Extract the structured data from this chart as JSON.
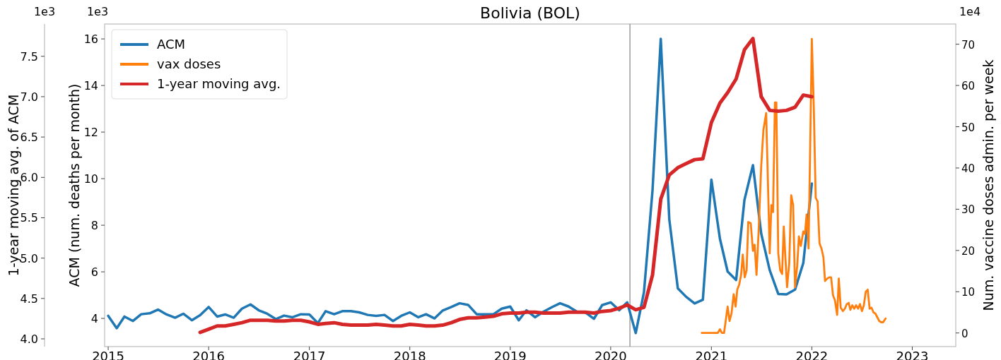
{
  "chart_data": {
    "type": "line",
    "title": "Bolivia (BOL)",
    "ylabel": "ACM (num. deaths per month)",
    "y2label": "Num. vaccine doses admin. per week",
    "y3label": "1-year moving avg. of ACM",
    "annotations": [
      "1e3",
      "1e3",
      "1e4"
    ],
    "xlim": [
      "2014-12-19",
      "2023-06-08"
    ],
    "xticks": [
      "2015",
      "2016",
      "2017",
      "2018",
      "2019",
      "2020",
      "2021",
      "2022",
      "2023"
    ],
    "ylim": [
      2.79,
      16.64
    ],
    "yticks": [
      4,
      6,
      8,
      10,
      12,
      14,
      16
    ],
    "y2lim": [
      -3.3,
      74.9
    ],
    "y2ticks": [
      0,
      10,
      20,
      30,
      40,
      50,
      60,
      70
    ],
    "y3lim": [
      3.904,
      7.9
    ],
    "y3ticks": [
      {
        "value": 4,
        "label": "4.0"
      },
      4.5,
      {
        "value": 5,
        "label": "5.0"
      },
      5.5,
      {
        "value": 6,
        "label": "6.0"
      },
      6.5,
      {
        "value": 7,
        "label": "7.0"
      },
      7.5
    ],
    "grid": false,
    "legend": "top left",
    "line_style": "solid",
    "marker": "none",
    "ref_lines": [
      {
        "axis": "x",
        "value": "2020-03-11",
        "color": "#8c8c8c"
      }
    ],
    "series": [
      {
        "name": "ACM",
        "color": "#1f77b4",
        "axis": "y",
        "x": [
          "2015-01",
          "2015-02",
          "2015-03",
          "2015-04",
          "2015-05",
          "2015-06",
          "2015-07",
          "2015-08",
          "2015-09",
          "2015-10",
          "2015-11",
          "2015-12",
          "2016-01",
          "2016-02",
          "2016-03",
          "2016-04",
          "2016-05",
          "2016-06",
          "2016-07",
          "2016-08",
          "2016-09",
          "2016-10",
          "2016-11",
          "2016-12",
          "2017-01",
          "2017-02",
          "2017-03",
          "2017-04",
          "2017-05",
          "2017-06",
          "2017-07",
          "2017-08",
          "2017-09",
          "2017-10",
          "2017-11",
          "2017-12",
          "2018-01",
          "2018-02",
          "2018-03",
          "2018-04",
          "2018-05",
          "2018-06",
          "2018-07",
          "2018-08",
          "2018-09",
          "2018-10",
          "2018-11",
          "2018-12",
          "2019-01",
          "2019-02",
          "2019-03",
          "2019-04",
          "2019-05",
          "2019-06",
          "2019-07",
          "2019-08",
          "2019-09",
          "2019-10",
          "2019-11",
          "2019-12",
          "2020-01",
          "2020-02",
          "2020-03",
          "2020-04",
          "2020-05",
          "2020-06",
          "2020-07",
          "2020-08",
          "2020-09",
          "2020-10",
          "2020-11",
          "2020-12",
          "2021-01",
          "2021-02",
          "2021-03",
          "2021-04",
          "2021-05",
          "2021-06",
          "2021-07",
          "2021-08",
          "2021-09",
          "2021-10",
          "2021-11",
          "2021-12",
          "2022-01"
        ],
        "values": [
          4.11,
          3.58,
          4.08,
          3.89,
          4.18,
          4.22,
          4.38,
          4.17,
          4.03,
          4.2,
          3.92,
          4.14,
          4.49,
          4.08,
          4.17,
          4.03,
          4.42,
          4.6,
          4.35,
          4.2,
          3.97,
          4.12,
          4.05,
          4.18,
          4.17,
          3.8,
          4.31,
          4.18,
          4.31,
          4.31,
          4.26,
          4.15,
          4.11,
          4.15,
          3.89,
          4.11,
          4.26,
          4.05,
          4.18,
          4.0,
          4.34,
          4.49,
          4.65,
          4.58,
          4.18,
          4.18,
          4.18,
          4.42,
          4.51,
          3.92,
          4.35,
          4.05,
          4.28,
          4.48,
          4.65,
          4.51,
          4.28,
          4.26,
          3.98,
          4.57,
          4.69,
          4.35,
          4.69,
          3.37,
          5.13,
          9.49,
          16.0,
          8.25,
          5.29,
          4.93,
          4.64,
          4.8,
          9.96,
          7.42,
          6.01,
          5.65,
          9.08,
          10.58,
          7.64,
          6.07,
          5.05,
          5.03,
          5.24,
          6.38,
          9.79
        ]
      },
      {
        "name": "vax doses",
        "color": "#ff7f0e",
        "axis": "y2",
        "x": [
          "2020-11-27",
          "2021-01-24",
          "2021-02-01",
          "2021-02-08",
          "2021-02-16",
          "2021-03-01",
          "2021-03-08",
          "2021-03-15",
          "2021-03-23",
          "2021-03-30",
          "2021-04-05",
          "2021-04-12",
          "2021-04-19",
          "2021-04-25",
          "2021-05-02",
          "2021-05-09",
          "2021-05-15",
          "2021-05-24",
          "2021-06-01",
          "2021-06-07",
          "2021-06-14",
          "2021-06-22",
          "2021-07-01",
          "2021-07-09",
          "2021-07-19",
          "2021-08-01",
          "2021-08-07",
          "2021-08-13",
          "2021-08-20",
          "2021-08-25",
          "2021-09-01",
          "2021-09-08",
          "2021-09-15",
          "2021-09-21",
          "2021-09-27",
          "2021-10-03",
          "2021-10-11",
          "2021-10-18",
          "2021-10-25",
          "2021-11-01",
          "2021-11-09",
          "2021-11-15",
          "2021-11-22",
          "2021-12-01",
          "2021-12-07",
          "2021-12-13",
          "2021-12-20",
          "2021-12-27",
          "2022-01-01",
          "2022-01-08",
          "2022-01-15",
          "2022-01-22",
          "2022-01-29",
          "2022-02-05",
          "2022-02-12",
          "2022-02-18",
          "2022-02-26",
          "2022-03-05",
          "2022-03-12",
          "2022-03-19",
          "2022-03-26",
          "2022-04-03",
          "2022-04-09",
          "2022-04-16",
          "2022-04-24",
          "2022-05-01",
          "2022-05-08",
          "2022-05-15",
          "2022-05-21",
          "2022-05-28",
          "2022-06-04",
          "2022-06-11",
          "2022-06-18",
          "2022-06-25",
          "2022-07-02",
          "2022-07-09",
          "2022-07-16",
          "2022-07-23",
          "2022-07-30",
          "2022-08-06",
          "2022-08-13",
          "2022-08-20",
          "2022-08-27",
          "2022-09-03",
          "2022-09-10",
          "2022-09-17",
          "2022-09-26"
        ],
        "values": [
          0,
          0,
          0.9,
          0,
          0,
          6.4,
          2.9,
          4.7,
          9.4,
          6.4,
          10.5,
          11.7,
          14.1,
          19.0,
          13.5,
          15.2,
          26.9,
          26.6,
          19.9,
          21.4,
          14.1,
          25.2,
          40.4,
          49.2,
          53.3,
          19.3,
          31.0,
          29.3,
          55.9,
          55.9,
          19.3,
          15.2,
          14.3,
          25.8,
          18.1,
          11.1,
          17.0,
          33.4,
          31.0,
          11.1,
          16.4,
          23.4,
          21.1,
          24.6,
          24.0,
          28.7,
          20.5,
          49.2,
          71.3,
          55.0,
          32.8,
          31.9,
          21.7,
          20.5,
          18.4,
          12.6,
          13.2,
          13.5,
          13.5,
          9.1,
          7.9,
          4.4,
          13.2,
          6.1,
          5.3,
          5.9,
          7.0,
          7.3,
          5.6,
          6.7,
          5.9,
          6.7,
          5.9,
          7.0,
          5.3,
          6.7,
          10.0,
          10.5,
          5.9,
          6.1,
          5.0,
          4.7,
          3.8,
          2.9,
          2.6,
          2.6,
          3.5
        ]
      },
      {
        "name": "1-year moving avg.",
        "color": "#d62728",
        "axis": "y3",
        "x": [
          "2015-12",
          "2016-01",
          "2016-02",
          "2016-03",
          "2016-04",
          "2016-05",
          "2016-06",
          "2016-07",
          "2016-08",
          "2016-09",
          "2016-10",
          "2016-11",
          "2016-12",
          "2017-01",
          "2017-02",
          "2017-03",
          "2017-04",
          "2017-05",
          "2017-06",
          "2017-07",
          "2017-08",
          "2017-09",
          "2017-10",
          "2017-11",
          "2017-12",
          "2018-01",
          "2018-02",
          "2018-03",
          "2018-04",
          "2018-05",
          "2018-06",
          "2018-07",
          "2018-08",
          "2018-09",
          "2018-10",
          "2018-11",
          "2018-12",
          "2019-01",
          "2019-02",
          "2019-03",
          "2019-04",
          "2019-05",
          "2019-06",
          "2019-07",
          "2019-08",
          "2019-09",
          "2019-10",
          "2019-11",
          "2019-12",
          "2020-01",
          "2020-02",
          "2020-03",
          "2020-04",
          "2020-05",
          "2020-06",
          "2020-07",
          "2020-08",
          "2020-09",
          "2020-10",
          "2020-11",
          "2020-12",
          "2021-01",
          "2021-02",
          "2021-03",
          "2021-04",
          "2021-05",
          "2021-06",
          "2021-07",
          "2021-08",
          "2021-09",
          "2021-10",
          "2021-11",
          "2021-12",
          "2022-01"
        ],
        "values": [
          4.08,
          4.12,
          4.16,
          4.16,
          4.18,
          4.2,
          4.23,
          4.23,
          4.23,
          4.22,
          4.22,
          4.23,
          4.23,
          4.21,
          4.18,
          4.19,
          4.2,
          4.18,
          4.17,
          4.17,
          4.17,
          4.18,
          4.17,
          4.16,
          4.16,
          4.18,
          4.17,
          4.16,
          4.16,
          4.17,
          4.2,
          4.24,
          4.26,
          4.26,
          4.27,
          4.28,
          4.31,
          4.32,
          4.32,
          4.33,
          4.33,
          4.32,
          4.32,
          4.32,
          4.33,
          4.33,
          4.33,
          4.32,
          4.34,
          4.35,
          4.38,
          4.42,
          4.36,
          4.39,
          4.79,
          5.73,
          6.03,
          6.12,
          6.17,
          6.22,
          6.23,
          6.68,
          6.92,
          7.05,
          7.22,
          7.58,
          7.72,
          7.0,
          6.83,
          6.82,
          6.83,
          6.87,
          7.02,
          7.0
        ]
      }
    ]
  }
}
